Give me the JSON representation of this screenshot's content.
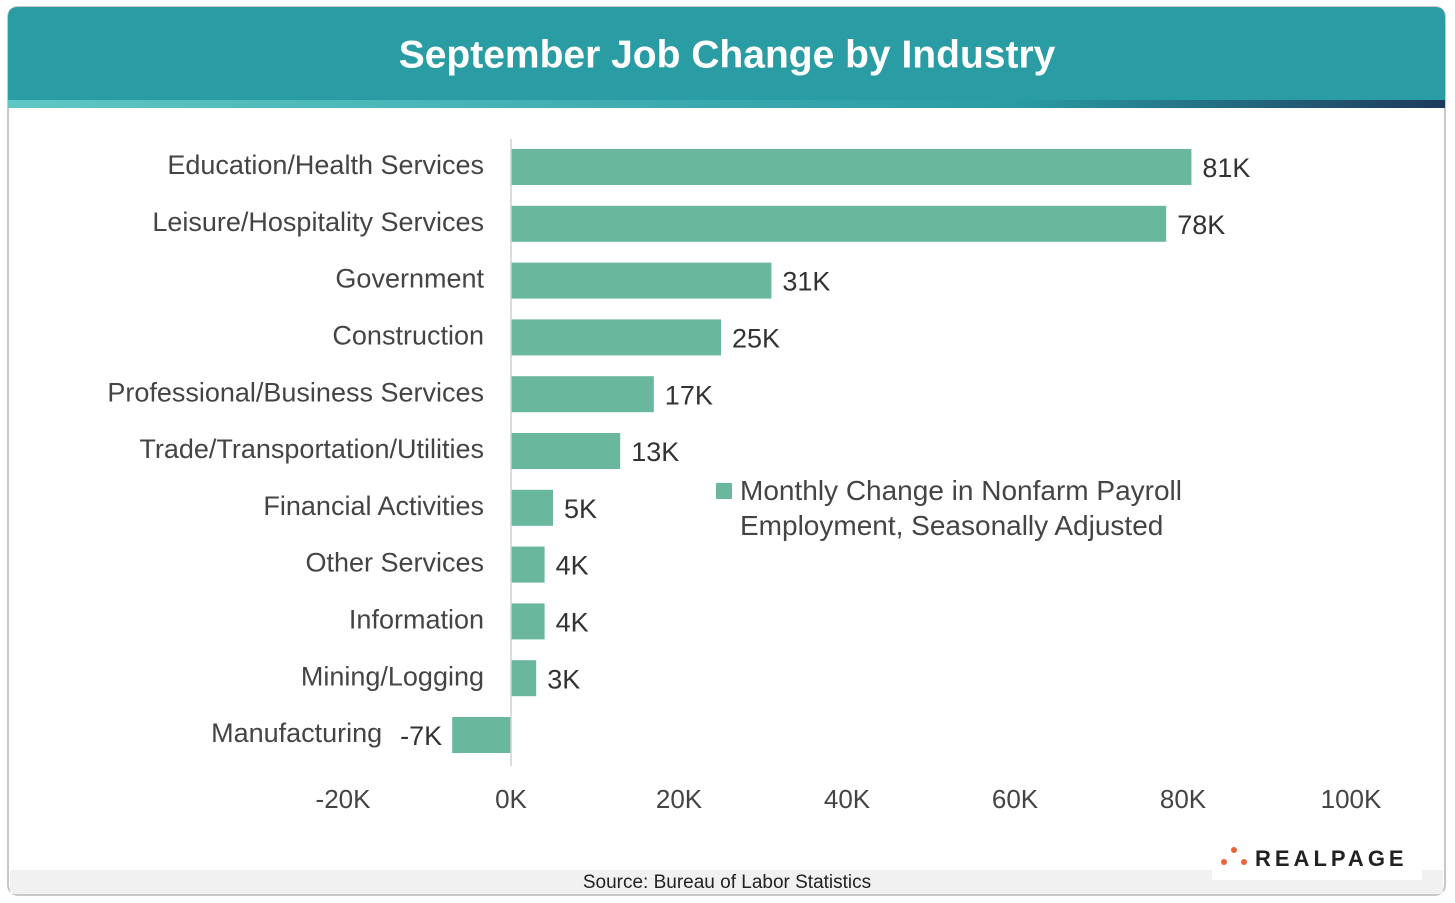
{
  "chart_data": {
    "type": "bar",
    "orientation": "horizontal",
    "title": "September Job Change by Industry",
    "categories": [
      "Education/Health Services",
      "Leisure/Hospitality Services",
      "Government",
      "Construction",
      "Professional/Business Services",
      "Trade/Transportation/Utilities",
      "Financial Activities",
      "Other Services",
      "Information",
      "Mining/Logging",
      "Manufacturing"
    ],
    "series": [
      {
        "name": "Monthly Change in Nonfarm Payroll Employment, Seasonally Adjusted",
        "color": "#69b89d",
        "values": [
          81000,
          78000,
          31000,
          25000,
          17000,
          13000,
          5000,
          4000,
          4000,
          3000,
          -7000
        ],
        "value_labels": [
          "81K",
          "78K",
          "31K",
          "25K",
          "17K",
          "13K",
          "5K",
          "4K",
          "4K",
          "3K",
          "-7K"
        ]
      }
    ],
    "xlim": [
      -20000,
      100000
    ],
    "xticks": [
      {
        "value": -20000,
        "label": "-20K"
      },
      {
        "value": 0,
        "label": "0K"
      },
      {
        "value": 20000,
        "label": "20K"
      },
      {
        "value": 40000,
        "label": "40K"
      },
      {
        "value": 60000,
        "label": "60K"
      },
      {
        "value": 80000,
        "label": "80K"
      },
      {
        "value": 100000,
        "label": "100K"
      }
    ],
    "source": "Source: Bureau of Labor Statistics"
  },
  "logo": "REALPAGE"
}
